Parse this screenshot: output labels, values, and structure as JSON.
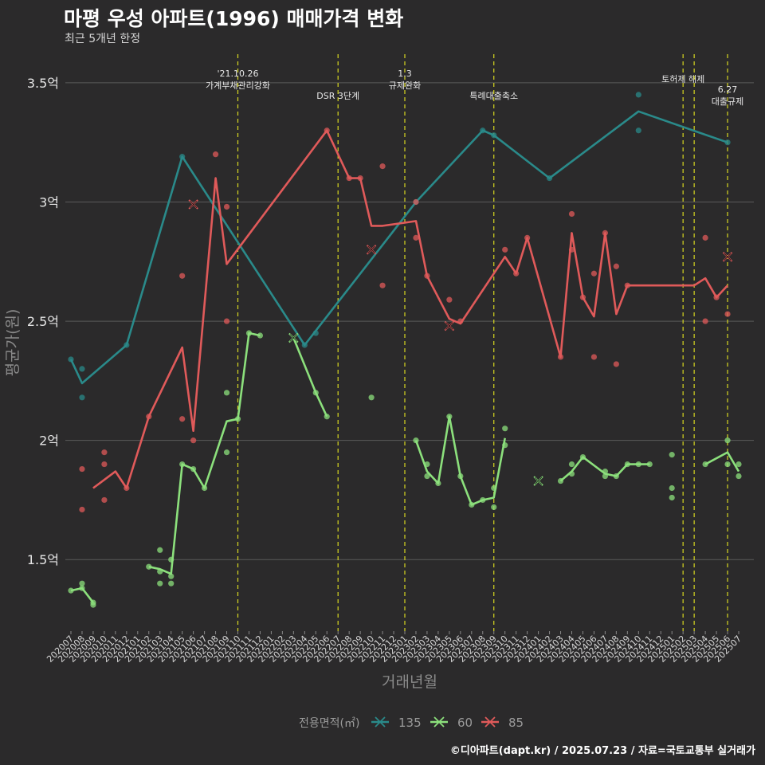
{
  "title": "마평 우성 아파트(1996) 매매가격 변화",
  "subtitle": "최근 5개년 한정",
  "caption": "©디아파트(dapt.kr) / 2025.07.23 / 자료=국토교통부 실거래가",
  "colors": {
    "background": "#2b2a2b",
    "grid": "#5a5a5a",
    "event_line": "#d8d820",
    "series_135": "#2a8a8a",
    "series_60": "#8ce07c",
    "series_85": "#e05a5a"
  },
  "chart_data": {
    "type": "line",
    "xlabel": "거래년월",
    "ylabel": "평균가(원)",
    "legend_title": "전용면적(㎡)",
    "legend_position": "bottom",
    "grid": true,
    "ylim": [
      1.2,
      3.62
    ],
    "y_ticks": [
      {
        "value": 1.5,
        "label": "1.5억"
      },
      {
        "value": 2.0,
        "label": "2억"
      },
      {
        "value": 2.5,
        "label": "2.5억"
      },
      {
        "value": 3.0,
        "label": "3억"
      },
      {
        "value": 3.5,
        "label": "3.5억"
      }
    ],
    "x_categories": [
      "202007",
      "202008",
      "202009",
      "202010",
      "202011",
      "202012",
      "202101",
      "202102",
      "202103",
      "202104",
      "202105",
      "202106",
      "202107",
      "202108",
      "202109",
      "202110",
      "202111",
      "202112",
      "202201",
      "202202",
      "202203",
      "202204",
      "202205",
      "202206",
      "202207",
      "202208",
      "202209",
      "202210",
      "202211",
      "202212",
      "202301",
      "202302",
      "202303",
      "202304",
      "202305",
      "202306",
      "202307",
      "202308",
      "202309",
      "202310",
      "202311",
      "202312",
      "202401",
      "202402",
      "202403",
      "202404",
      "202405",
      "202406",
      "202407",
      "202408",
      "202409",
      "202410",
      "202411",
      "202412",
      "202501",
      "202502",
      "202503",
      "202504",
      "202505",
      "202506",
      "202507"
    ],
    "events": [
      {
        "x": "202110",
        "label": "'21.10.26\n가계부채관리강화"
      },
      {
        "x": "202207",
        "label": "DSR 3단계"
      },
      {
        "x": "202301",
        "label": "1.3\n규제완화"
      },
      {
        "x": "202309",
        "label": "특례대출축소"
      },
      {
        "x": "202502",
        "label": "토허제 해제"
      },
      {
        "x": "202503",
        "label": ""
      },
      {
        "x": "202506",
        "label": "6.27\n대출규제"
      }
    ],
    "series": [
      {
        "name": "135",
        "color_key": "series_135",
        "line": [
          [
            "202007",
            2.34
          ],
          [
            "202008",
            2.24
          ],
          [
            "202012",
            2.4
          ],
          [
            "202105",
            3.19
          ],
          [
            "202204",
            2.4
          ],
          [
            "202302",
            3.0
          ],
          [
            "202308",
            3.3
          ],
          [
            "202309",
            3.28
          ],
          [
            "202402",
            3.1
          ],
          [
            "202410",
            3.38
          ],
          [
            "202506",
            3.25
          ]
        ],
        "points": [
          [
            "202007",
            2.34
          ],
          [
            "202008",
            2.3
          ],
          [
            "202008",
            2.18
          ],
          [
            "202012",
            2.4
          ],
          [
            "202105",
            3.19
          ],
          [
            "202204",
            2.4
          ],
          [
            "202205",
            2.45
          ],
          [
            "202302",
            3.0
          ],
          [
            "202308",
            3.3
          ],
          [
            "202309",
            3.28
          ],
          [
            "202402",
            3.1
          ],
          [
            "202410",
            3.45
          ],
          [
            "202410",
            3.3
          ],
          [
            "202506",
            3.25
          ]
        ],
        "crosses": []
      },
      {
        "name": "60",
        "color_key": "series_60",
        "segments": [
          [
            [
              "202007",
              1.37
            ],
            [
              "202008",
              1.38
            ],
            [
              "202009",
              1.32
            ]
          ],
          [
            [
              "202102",
              1.47
            ],
            [
              "202103",
              1.46
            ],
            [
              "202104",
              1.44
            ],
            [
              "202105",
              1.9
            ],
            [
              "202106",
              1.88
            ],
            [
              "202107",
              1.8
            ],
            [
              "202109",
              2.08
            ],
            [
              "202110",
              2.09
            ],
            [
              "202111",
              2.45
            ],
            [
              "202112",
              2.44
            ]
          ],
          [
            [
              "202203",
              2.43
            ],
            [
              "202205",
              2.2
            ],
            [
              "202206",
              2.1
            ]
          ],
          [
            [
              "202302",
              2.0
            ],
            [
              "202303",
              1.87
            ],
            [
              "202304",
              1.82
            ],
            [
              "202305",
              2.1
            ],
            [
              "202306",
              1.85
            ],
            [
              "202307",
              1.73
            ],
            [
              "202308",
              1.75
            ],
            [
              "202309",
              1.76
            ],
            [
              "202310",
              2.01
            ]
          ],
          [
            [
              "202403",
              1.83
            ],
            [
              "202404",
              1.87
            ],
            [
              "202405",
              1.93
            ],
            [
              "202407",
              1.86
            ],
            [
              "202408",
              1.85
            ],
            [
              "202409",
              1.9
            ],
            [
              "202410",
              1.9
            ],
            [
              "202411",
              1.9
            ]
          ],
          [
            [
              "202504",
              1.9
            ],
            [
              "202506",
              1.95
            ],
            [
              "202507",
              1.87
            ]
          ]
        ],
        "points": [
          [
            "202007",
            1.37
          ],
          [
            "202008",
            1.4
          ],
          [
            "202008",
            1.38
          ],
          [
            "202009",
            1.32
          ],
          [
            "202009",
            1.31
          ],
          [
            "202102",
            1.47
          ],
          [
            "202103",
            1.54
          ],
          [
            "202103",
            1.45
          ],
          [
            "202103",
            1.4
          ],
          [
            "202104",
            1.5
          ],
          [
            "202104",
            1.43
          ],
          [
            "202104",
            1.4
          ],
          [
            "202105",
            1.9
          ],
          [
            "202106",
            1.88
          ],
          [
            "202107",
            1.8
          ],
          [
            "202109",
            2.2
          ],
          [
            "202109",
            1.95
          ],
          [
            "202110",
            2.09
          ],
          [
            "202111",
            2.45
          ],
          [
            "202112",
            2.44
          ],
          [
            "202205",
            2.2
          ],
          [
            "202206",
            2.1
          ],
          [
            "202210",
            2.18
          ],
          [
            "202302",
            2.0
          ],
          [
            "202303",
            1.9
          ],
          [
            "202303",
            1.85
          ],
          [
            "202304",
            1.82
          ],
          [
            "202305",
            2.1
          ],
          [
            "202306",
            1.85
          ],
          [
            "202307",
            1.73
          ],
          [
            "202308",
            1.75
          ],
          [
            "202309",
            1.8
          ],
          [
            "202309",
            1.72
          ],
          [
            "202310",
            2.05
          ],
          [
            "202310",
            1.98
          ],
          [
            "202403",
            1.83
          ],
          [
            "202404",
            1.9
          ],
          [
            "202404",
            1.86
          ],
          [
            "202405",
            1.93
          ],
          [
            "202407",
            1.87
          ],
          [
            "202407",
            1.85
          ],
          [
            "202408",
            1.85
          ],
          [
            "202409",
            1.9
          ],
          [
            "202410",
            1.9
          ],
          [
            "202411",
            1.9
          ],
          [
            "202501",
            1.94
          ],
          [
            "202501",
            1.8
          ],
          [
            "202501",
            1.76
          ],
          [
            "202504",
            1.9
          ],
          [
            "202506",
            2.0
          ],
          [
            "202506",
            1.9
          ],
          [
            "202507",
            1.9
          ],
          [
            "202507",
            1.85
          ]
        ],
        "crosses": [
          [
            "202203",
            2.43
          ],
          [
            "202401",
            1.83
          ]
        ]
      },
      {
        "name": "85",
        "color_key": "series_85",
        "segments": [
          [
            [
              "202009",
              1.8
            ],
            [
              "202011",
              1.87
            ],
            [
              "202012",
              1.8
            ],
            [
              "202102",
              2.1
            ],
            [
              "202105",
              2.39
            ],
            [
              "202106",
              2.04
            ],
            [
              "202108",
              3.1
            ],
            [
              "202109",
              2.74
            ],
            [
              "202206",
              3.3
            ],
            [
              "202208",
              3.1
            ],
            [
              "202209",
              3.1
            ],
            [
              "202210",
              2.9
            ],
            [
              "202211",
              2.9
            ],
            [
              "202302",
              2.92
            ],
            [
              "202303",
              2.69
            ],
            [
              "202305",
              2.51
            ],
            [
              "202306",
              2.49
            ],
            [
              "202310",
              2.77
            ],
            [
              "202311",
              2.7
            ],
            [
              "202312",
              2.85
            ],
            [
              "202403",
              2.35
            ],
            [
              "202404",
              2.87
            ],
            [
              "202405",
              2.6
            ],
            [
              "202406",
              2.52
            ],
            [
              "202407",
              2.87
            ],
            [
              "202408",
              2.53
            ],
            [
              "202409",
              2.65
            ],
            [
              "202503",
              2.65
            ],
            [
              "202504",
              2.68
            ],
            [
              "202505",
              2.6
            ],
            [
              "202506",
              2.65
            ]
          ]
        ],
        "points": [
          [
            "202008",
            1.88
          ],
          [
            "202008",
            1.71
          ],
          [
            "202010",
            1.95
          ],
          [
            "202010",
            1.9
          ],
          [
            "202010",
            1.75
          ],
          [
            "202012",
            1.8
          ],
          [
            "202102",
            2.1
          ],
          [
            "202105",
            2.69
          ],
          [
            "202105",
            2.09
          ],
          [
            "202106",
            2.0
          ],
          [
            "202108",
            3.2
          ],
          [
            "202109",
            2.98
          ],
          [
            "202109",
            2.5
          ],
          [
            "202206",
            3.3
          ],
          [
            "202208",
            3.1
          ],
          [
            "202209",
            3.1
          ],
          [
            "202211",
            3.15
          ],
          [
            "202211",
            2.65
          ],
          [
            "202302",
            3.0
          ],
          [
            "202302",
            2.85
          ],
          [
            "202303",
            2.69
          ],
          [
            "202305",
            2.59
          ],
          [
            "202306",
            2.5
          ],
          [
            "202310",
            2.8
          ],
          [
            "202311",
            2.7
          ],
          [
            "202312",
            2.85
          ],
          [
            "202403",
            2.35
          ],
          [
            "202404",
            2.95
          ],
          [
            "202404",
            2.8
          ],
          [
            "202405",
            2.6
          ],
          [
            "202406",
            2.7
          ],
          [
            "202406",
            2.35
          ],
          [
            "202407",
            2.87
          ],
          [
            "202408",
            2.73
          ],
          [
            "202408",
            2.32
          ],
          [
            "202409",
            2.65
          ],
          [
            "202504",
            2.85
          ],
          [
            "202504",
            2.5
          ],
          [
            "202505",
            2.6
          ],
          [
            "202506",
            2.53
          ]
        ],
        "crosses": [
          [
            "202106",
            2.99
          ],
          [
            "202210",
            2.8
          ],
          [
            "202305",
            2.48
          ],
          [
            "202506",
            2.77
          ]
        ]
      }
    ]
  }
}
